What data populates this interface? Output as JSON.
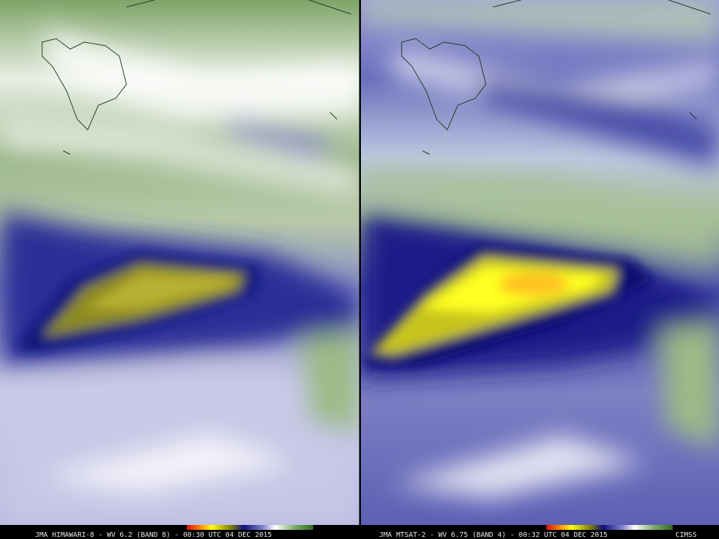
{
  "panels": [
    {
      "caption": "JMA HIMAWARI-8 - WV 6.2 (BAND 8) - 00:30 UTC 04 DEC 2015"
    },
    {
      "caption": "JMA MTSAT-2 - WV 6.75 (BAND 4) - 00:32 UTC 04 DEC 2015"
    }
  ],
  "credit": "CIMSS"
}
